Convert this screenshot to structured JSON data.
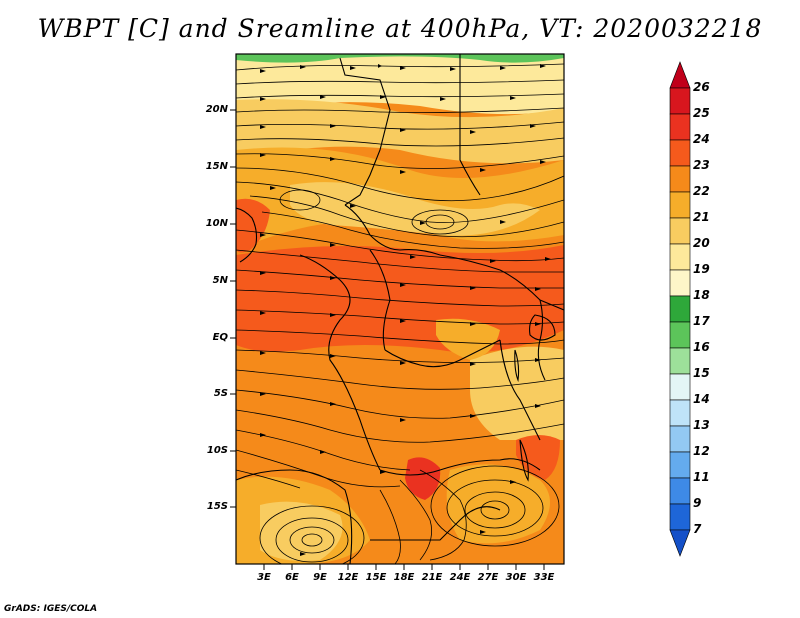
{
  "title": "WBPT [C] and Sreamline at 400hPa, VT: 2020032218",
  "footer": "GrADS: IGES/COLA",
  "map": {
    "lat_ticks": [
      "20N",
      "15N",
      "10N",
      "5N",
      "EQ",
      "5S",
      "10S",
      "15S"
    ],
    "lon_ticks": [
      "3E",
      "6E",
      "9E",
      "12E",
      "15E",
      "18E",
      "21E",
      "24E",
      "27E",
      "30E",
      "33E"
    ]
  },
  "colorbar": {
    "labels": [
      "26",
      "25",
      "24",
      "23",
      "22",
      "21",
      "20",
      "19",
      "18",
      "17",
      "16",
      "15",
      "14",
      "13",
      "12",
      "11",
      "9",
      "7"
    ],
    "colors": [
      "#c0001a",
      "#d8161e",
      "#ea3220",
      "#f55a1c",
      "#f58a1a",
      "#f6ad2a",
      "#f8cc60",
      "#fde99b",
      "#fdf6c8",
      "#2ea83a",
      "#5cc45a",
      "#9de09a",
      "#e3f6f6",
      "#bfe3f8",
      "#93c9f3",
      "#64abee",
      "#3e8ae6",
      "#1e66d8",
      "#1450c8"
    ]
  }
}
